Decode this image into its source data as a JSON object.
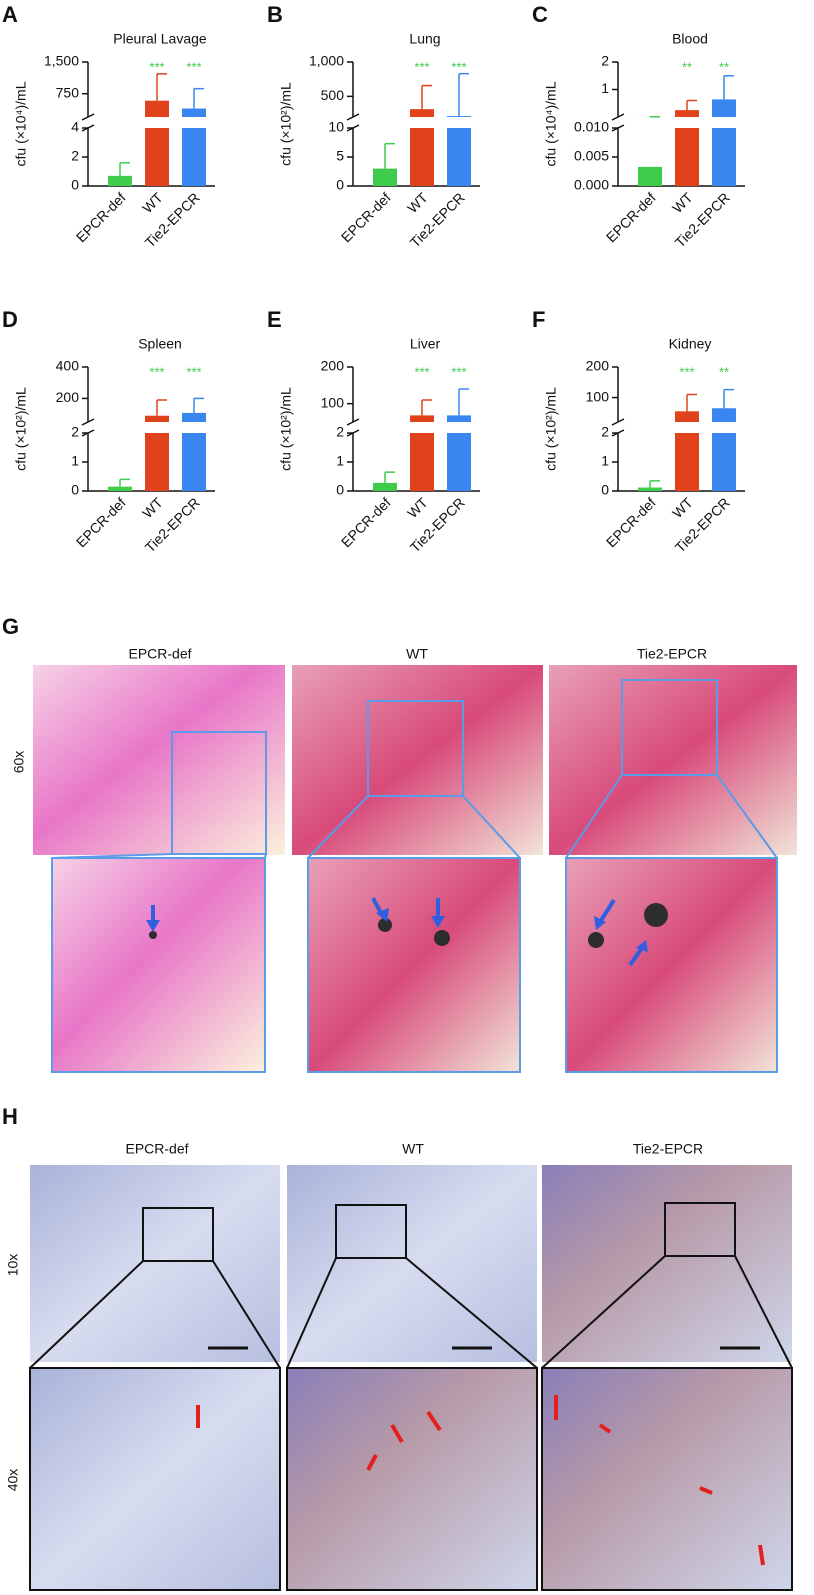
{
  "chart_data": [
    {
      "type": "broken-bar",
      "panel": "A",
      "title": "Pleural Lavage",
      "ylabel": "cfu (×10⁴)/mL",
      "categories": [
        "EPCR-def",
        "WT",
        "Tie2-EPCR"
      ],
      "values": [
        0.7,
        585,
        400
      ],
      "errors": [
        0.9,
        635,
        470
      ],
      "significance": [
        null,
        "***",
        "***"
      ],
      "colors": [
        "#3fcc4b",
        "#e0421b",
        "#3a86f0"
      ],
      "significance_color": "#3fcc4b",
      "segments": [
        {
          "ylim": [
            0,
            4
          ],
          "yticks": [
            0,
            2,
            4
          ]
        },
        {
          "ylim": [
            200,
            1500
          ],
          "yticks": [
            750,
            {
              "value": 1500,
              "label": "1,500"
            }
          ]
        }
      ]
    },
    {
      "type": "broken-bar",
      "panel": "B",
      "title": "Lung",
      "ylabel": "cfu (×10²)/mL",
      "categories": [
        "EPCR-def",
        "WT",
        "Tie2-EPCR"
      ],
      "values": [
        3.0,
        314,
        214
      ],
      "errors": [
        4.3,
        343,
        616
      ],
      "significance": [
        null,
        "***",
        "***"
      ],
      "colors": [
        "#3fcc4b",
        "#e0421b",
        "#3a86f0"
      ],
      "significance_color": "#3fcc4b",
      "segments": [
        {
          "ylim": [
            0,
            10
          ],
          "yticks": [
            0,
            5,
            10
          ]
        },
        {
          "ylim": [
            200,
            1000
          ],
          "yticks": [
            500,
            {
              "value": 1000,
              "label": "1,000"
            }
          ]
        }
      ]
    },
    {
      "type": "broken-bar",
      "panel": "C",
      "title": "Blood",
      "ylabel": "cfu (×10⁴)/mL",
      "categories": [
        "EPCR-def",
        "WT",
        "Tie2-EPCR"
      ],
      "values": [
        0.0033,
        0.25,
        0.64
      ],
      "errors": [
        0.0036,
        0.35,
        0.86
      ],
      "significance": [
        null,
        "**",
        "**"
      ],
      "colors": [
        "#3fcc4b",
        "#e0421b",
        "#3a86f0"
      ],
      "significance_color": "#3fcc4b",
      "segments": [
        {
          "ylim": [
            0,
            0.01
          ],
          "yticks": [
            {
              "value": 0,
              "label": "0.000"
            },
            {
              "value": 0.005,
              "label": "0.005"
            },
            {
              "value": 0.01,
              "label": "0.010"
            }
          ]
        },
        {
          "ylim": [
            0,
            2
          ],
          "yticks": [
            1,
            2
          ]
        }
      ]
    },
    {
      "type": "broken-bar",
      "panel": "D",
      "title": "Spleen",
      "ylabel": "cfu (×10²)/mL",
      "categories": [
        "EPCR-def",
        "WT",
        "Tie2-EPCR"
      ],
      "values": [
        0.15,
        90,
        108
      ],
      "errors": [
        0.25,
        100,
        92
      ],
      "significance": [
        null,
        "***",
        "***"
      ],
      "colors": [
        "#3fcc4b",
        "#e0421b",
        "#3a86f0"
      ],
      "significance_color": "#3fcc4b",
      "segments": [
        {
          "ylim": [
            0,
            2
          ],
          "yticks": [
            0,
            1,
            2
          ]
        },
        {
          "ylim": [
            50,
            400
          ],
          "yticks": [
            200,
            400
          ]
        }
      ]
    },
    {
      "type": "broken-bar",
      "panel": "E",
      "title": "Liver",
      "ylabel": "cfu (×10²)/mL",
      "categories": [
        "EPCR-def",
        "WT",
        "Tie2-EPCR"
      ],
      "values": [
        0.28,
        68,
        68
      ],
      "errors": [
        0.37,
        42,
        72
      ],
      "significance": [
        null,
        "***",
        "***"
      ],
      "colors": [
        "#3fcc4b",
        "#e0421b",
        "#3a86f0"
      ],
      "significance_color": "#3fcc4b",
      "segments": [
        {
          "ylim": [
            0,
            2
          ],
          "yticks": [
            0,
            1,
            2
          ]
        },
        {
          "ylim": [
            50,
            200
          ],
          "yticks": [
            100,
            200
          ]
        }
      ]
    },
    {
      "type": "broken-bar",
      "panel": "F",
      "title": "Kidney",
      "ylabel": "cfu (×10²)/mL",
      "categories": [
        "EPCR-def",
        "WT",
        "Tie2-EPCR"
      ],
      "values": [
        0.12,
        55,
        65
      ],
      "errors": [
        0.23,
        55,
        61
      ],
      "significance": [
        null,
        "***",
        "**"
      ],
      "colors": [
        "#3fcc4b",
        "#e0421b",
        "#3a86f0"
      ],
      "significance_color": "#3fcc4b",
      "segments": [
        {
          "ylim": [
            0,
            2
          ],
          "yticks": [
            0,
            1,
            2
          ]
        },
        {
          "ylim": [
            20,
            200
          ],
          "yticks": [
            100,
            200
          ]
        }
      ]
    }
  ],
  "images": [
    {
      "panel": "G",
      "columns": [
        "EPCR-def",
        "WT",
        "Tie2-EPCR"
      ],
      "rows": [
        "60x"
      ]
    },
    {
      "panel": "H",
      "columns": [
        "EPCR-def",
        "WT",
        "Tie2-EPCR"
      ],
      "rows": [
        "10x",
        "40x"
      ]
    }
  ]
}
